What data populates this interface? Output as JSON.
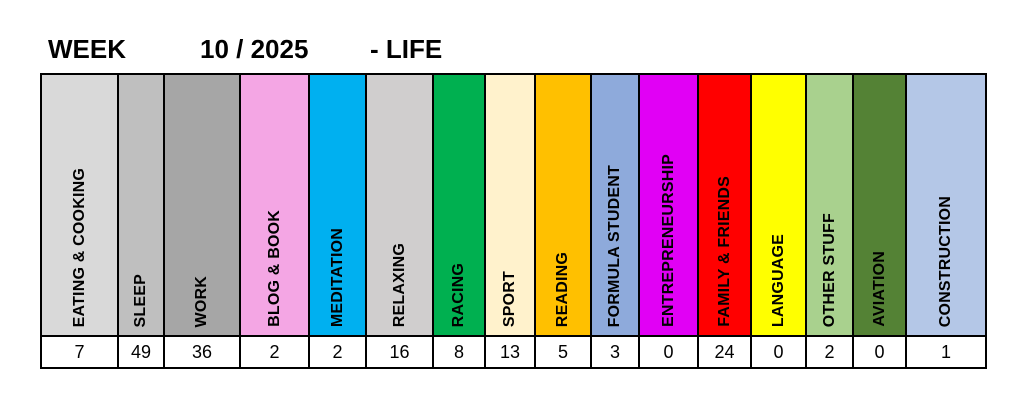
{
  "header": {
    "week_label": "WEEK",
    "week_value": "10 / 2025",
    "category": "- LIFE"
  },
  "categories": [
    {
      "label": "EATING & COOKING",
      "value": "7",
      "color": "#d9d9d9"
    },
    {
      "label": "SLEEP",
      "value": "49",
      "color": "#bfbfbf"
    },
    {
      "label": "WORK",
      "value": "36",
      "color": "#a6a6a6"
    },
    {
      "label": "BLOG & BOOK",
      "value": "2",
      "color": "#f4a6e4"
    },
    {
      "label": "MEDITATION",
      "value": "2",
      "color": "#00b0f0"
    },
    {
      "label": "RELAXING",
      "value": "16",
      "color": "#d0cece"
    },
    {
      "label": "RACING",
      "value": "8",
      "color": "#00b050"
    },
    {
      "label": "SPORT",
      "value": "13",
      "color": "#fff2cc"
    },
    {
      "label": "READING",
      "value": "5",
      "color": "#ffc000"
    },
    {
      "label": "FORMULA STUDENT",
      "value": "3",
      "color": "#8eaadb"
    },
    {
      "label": "ENTREPRENEURSHIP",
      "value": "0",
      "color": "#e100f5"
    },
    {
      "label": "FAMILY & FRIENDS",
      "value": "24",
      "color": "#ff0000"
    },
    {
      "label": "LANGUAGE",
      "value": "0",
      "color": "#ffff00"
    },
    {
      "label": "OTHER STUFF",
      "value": "2",
      "color": "#a9d18e"
    },
    {
      "label": "AVIATION",
      "value": "0",
      "color": "#548235"
    },
    {
      "label": "CONSTRUCTION",
      "value": "1",
      "color": "#b4c7e7"
    }
  ]
}
